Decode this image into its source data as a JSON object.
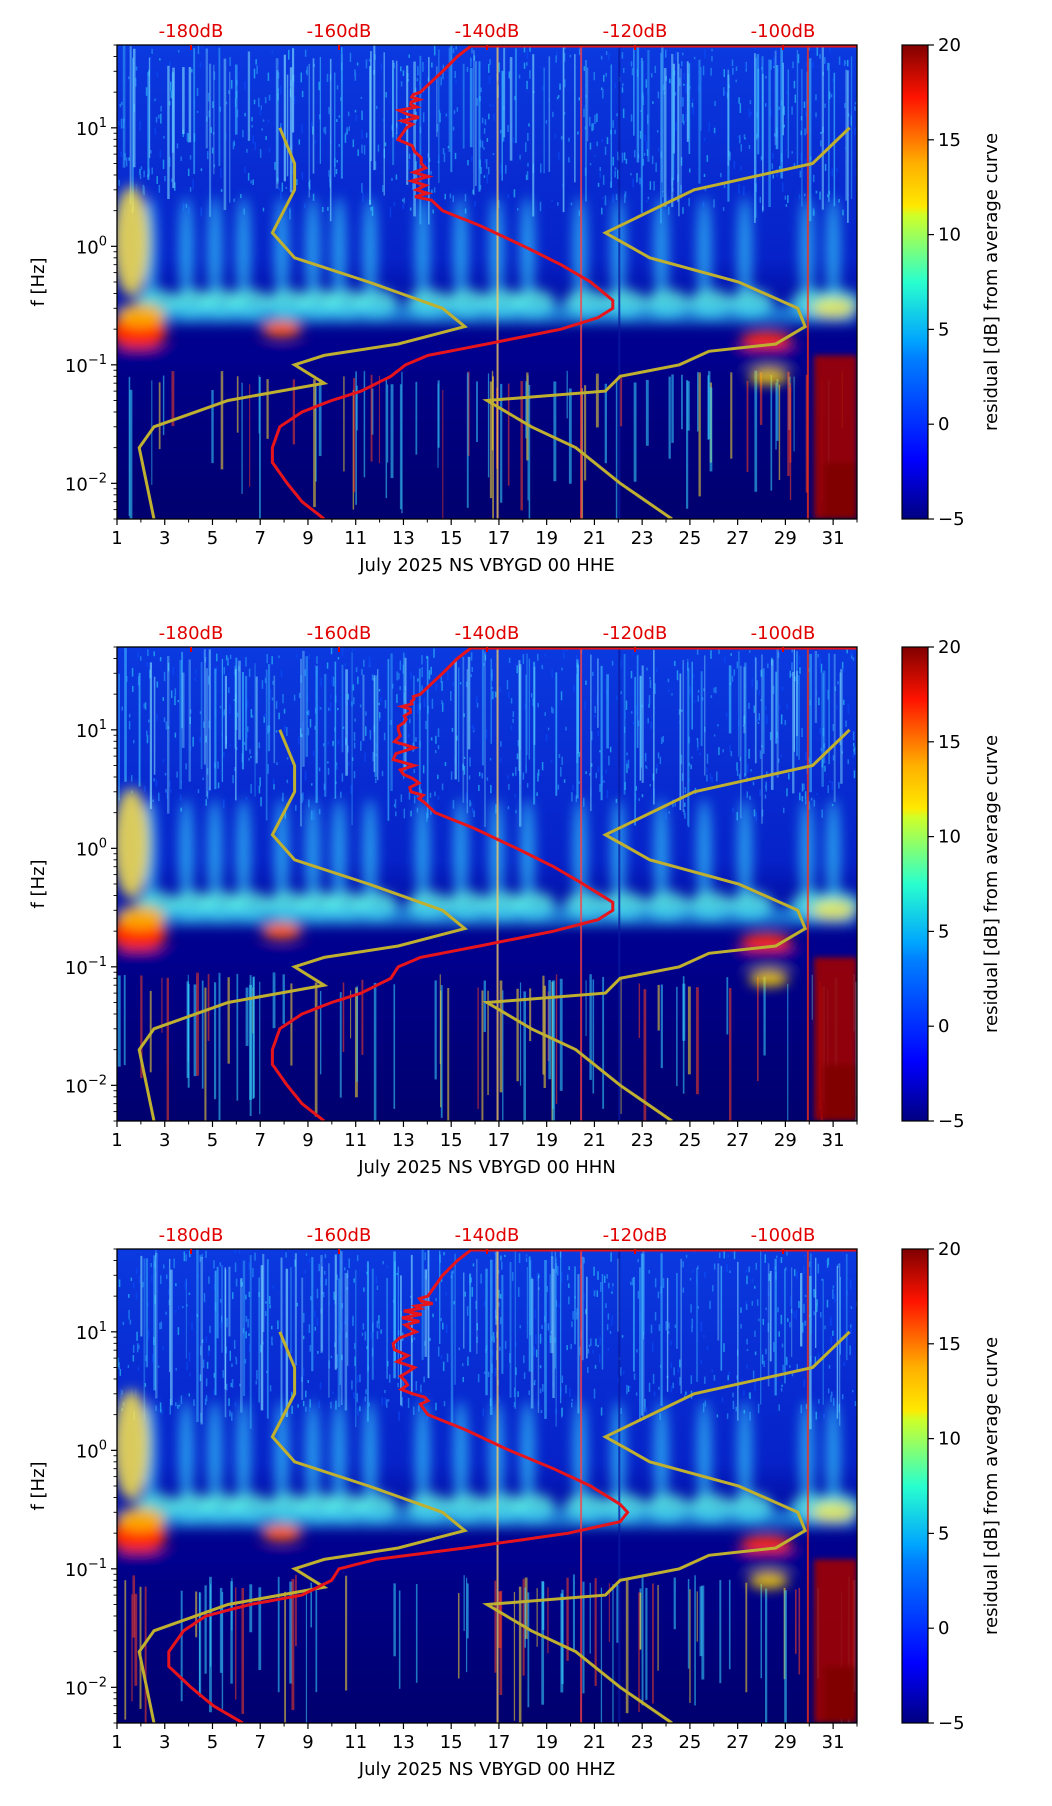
{
  "colors": {
    "accent_red": "#e00000",
    "curve_red": "#e8141c",
    "curve_olive": "#c0b030",
    "bg_deep": "#000091",
    "bg_blue": "#0a2bd6"
  },
  "chart_data": [
    {
      "type": "heatmap",
      "title": "",
      "xlabel": "July 2025 NS VBYGD 00 HHE",
      "ylabel": "f [Hz]",
      "x_ticks": [
        "1",
        "3",
        "5",
        "7",
        "9",
        "11",
        "13",
        "15",
        "17",
        "19",
        "21",
        "23",
        "25",
        "27",
        "29",
        "31"
      ],
      "y_ticks": [
        "10^-2",
        "10^-1",
        "10^0",
        "10^1"
      ],
      "top_ticks": [
        "-180dB",
        "-160dB",
        "-140dB",
        "-120dB",
        "-100dB"
      ],
      "colorbar_label": "residual [dB] from average curve",
      "colorbar_ticks": [
        "−5",
        "0",
        "5",
        "10",
        "15",
        "20"
      ],
      "clim": [
        -5,
        20
      ],
      "xlim": [
        1,
        32
      ],
      "ylim_hz": [
        0.005,
        50
      ],
      "top_axis_db": [
        -190,
        -90
      ],
      "vertical_stripes_day": [
        2.4,
        3.9,
        5.1,
        6.3,
        7.9,
        9.2,
        10.3,
        11.6,
        13.8,
        15.4,
        16.9,
        18.2,
        20.4,
        22.0,
        23.8,
        25.6,
        27.3,
        29.9,
        31.0
      ],
      "red_curve": {
        "name": "average PSD",
        "points_hz_db": [
          [
            50,
            -142
          ],
          [
            40,
            -144
          ],
          [
            30,
            -146
          ],
          [
            20,
            -149
          ],
          [
            15,
            -150
          ],
          [
            10,
            -151
          ],
          [
            5,
            -150
          ],
          [
            3,
            -149
          ],
          [
            2,
            -146
          ],
          [
            1.5,
            -141
          ],
          [
            1,
            -135
          ],
          [
            0.7,
            -130
          ],
          [
            0.5,
            -126
          ],
          [
            0.35,
            -123
          ],
          [
            0.3,
            -123
          ],
          [
            0.25,
            -125
          ],
          [
            0.2,
            -130
          ],
          [
            0.15,
            -140
          ],
          [
            0.12,
            -148
          ],
          [
            0.1,
            -151
          ],
          [
            0.08,
            -153
          ],
          [
            0.06,
            -157
          ],
          [
            0.05,
            -161
          ],
          [
            0.04,
            -165
          ],
          [
            0.03,
            -168
          ],
          [
            0.02,
            -169
          ],
          [
            0.015,
            -169
          ],
          [
            0.01,
            -167
          ],
          [
            0.007,
            -165
          ],
          [
            0.005,
            -162
          ]
        ]
      },
      "olive_curves": [
        {
          "name": "Peterson NLNM",
          "points_hz_db": [
            [
              10,
              -168
            ],
            [
              5,
              -166
            ],
            [
              3,
              -166
            ],
            [
              1.3,
              -169
            ],
            [
              0.8,
              -166
            ],
            [
              0.5,
              -156
            ],
            [
              0.3,
              -146
            ],
            [
              0.21,
              -143
            ],
            [
              0.15,
              -152
            ],
            [
              0.12,
              -162
            ],
            [
              0.1,
              -166
            ],
            [
              0.07,
              -162
            ],
            [
              0.05,
              -175
            ],
            [
              0.03,
              -185
            ],
            [
              0.02,
              -187
            ],
            [
              0.01,
              -186
            ],
            [
              0.005,
              -185
            ]
          ]
        },
        {
          "name": "Peterson NHNM",
          "points_hz_db": [
            [
              10,
              -91
            ],
            [
              5,
              -96
            ],
            [
              3,
              -112
            ],
            [
              1.3,
              -124
            ],
            [
              0.8,
              -118
            ],
            [
              0.5,
              -106
            ],
            [
              0.3,
              -98
            ],
            [
              0.21,
              -97
            ],
            [
              0.15,
              -101
            ],
            [
              0.13,
              -110
            ],
            [
              0.1,
              -114
            ],
            [
              0.08,
              -122
            ],
            [
              0.06,
              -124
            ],
            [
              0.05,
              -140
            ],
            [
              0.03,
              -134
            ],
            [
              0.02,
              -128
            ],
            [
              0.01,
              -122
            ],
            [
              0.005,
              -115
            ]
          ]
        }
      ]
    },
    {
      "type": "heatmap",
      "title": "",
      "xlabel": "July 2025 NS VBYGD 00 HHN",
      "ylabel": "f [Hz]",
      "x_ticks": [
        "1",
        "3",
        "5",
        "7",
        "9",
        "11",
        "13",
        "15",
        "17",
        "19",
        "21",
        "23",
        "25",
        "27",
        "29",
        "31"
      ],
      "y_ticks": [
        "10^-2",
        "10^-1",
        "10^0",
        "10^1"
      ],
      "top_ticks": [
        "-180dB",
        "-160dB",
        "-140dB",
        "-120dB",
        "-100dB"
      ],
      "colorbar_label": "residual [dB] from average curve",
      "colorbar_ticks": [
        "−5",
        "0",
        "5",
        "10",
        "15",
        "20"
      ],
      "clim": [
        -5,
        20
      ],
      "xlim": [
        1,
        32
      ],
      "ylim_hz": [
        0.005,
        50
      ],
      "top_axis_db": [
        -190,
        -90
      ],
      "vertical_stripes_day": [
        2.4,
        3.9,
        5.1,
        6.3,
        7.9,
        9.2,
        10.3,
        11.6,
        13.8,
        15.4,
        16.9,
        18.2,
        20.4,
        22.0,
        23.8,
        25.6,
        27.3,
        29.9,
        31.0
      ],
      "red_curve": {
        "name": "average PSD",
        "points_hz_db": [
          [
            50,
            -142
          ],
          [
            40,
            -144
          ],
          [
            30,
            -146
          ],
          [
            20,
            -149
          ],
          [
            15,
            -150
          ],
          [
            10,
            -151
          ],
          [
            5,
            -151
          ],
          [
            3,
            -150
          ],
          [
            2,
            -147
          ],
          [
            1.5,
            -142
          ],
          [
            1,
            -136
          ],
          [
            0.7,
            -131
          ],
          [
            0.5,
            -127
          ],
          [
            0.35,
            -123
          ],
          [
            0.3,
            -123
          ],
          [
            0.25,
            -125
          ],
          [
            0.2,
            -131
          ],
          [
            0.15,
            -141
          ],
          [
            0.12,
            -149
          ],
          [
            0.1,
            -152
          ],
          [
            0.08,
            -153
          ],
          [
            0.06,
            -157
          ],
          [
            0.05,
            -161
          ],
          [
            0.04,
            -165
          ],
          [
            0.03,
            -168
          ],
          [
            0.02,
            -169
          ],
          [
            0.015,
            -169
          ],
          [
            0.01,
            -167
          ],
          [
            0.007,
            -165
          ],
          [
            0.005,
            -162
          ]
        ]
      },
      "olive_curves": [
        {
          "name": "Peterson NLNM",
          "points_hz_db": [
            [
              10,
              -168
            ],
            [
              5,
              -166
            ],
            [
              3,
              -166
            ],
            [
              1.3,
              -169
            ],
            [
              0.8,
              -166
            ],
            [
              0.5,
              -156
            ],
            [
              0.3,
              -146
            ],
            [
              0.21,
              -143
            ],
            [
              0.15,
              -152
            ],
            [
              0.12,
              -162
            ],
            [
              0.1,
              -166
            ],
            [
              0.07,
              -162
            ],
            [
              0.05,
              -175
            ],
            [
              0.03,
              -185
            ],
            [
              0.02,
              -187
            ],
            [
              0.01,
              -186
            ],
            [
              0.005,
              -185
            ]
          ]
        },
        {
          "name": "Peterson NHNM",
          "points_hz_db": [
            [
              10,
              -91
            ],
            [
              5,
              -96
            ],
            [
              3,
              -112
            ],
            [
              1.3,
              -124
            ],
            [
              0.8,
              -118
            ],
            [
              0.5,
              -106
            ],
            [
              0.3,
              -98
            ],
            [
              0.21,
              -97
            ],
            [
              0.15,
              -101
            ],
            [
              0.13,
              -110
            ],
            [
              0.1,
              -114
            ],
            [
              0.08,
              -122
            ],
            [
              0.06,
              -124
            ],
            [
              0.05,
              -140
            ],
            [
              0.03,
              -134
            ],
            [
              0.02,
              -128
            ],
            [
              0.01,
              -122
            ],
            [
              0.005,
              -115
            ]
          ]
        }
      ]
    },
    {
      "type": "heatmap",
      "title": "",
      "xlabel": "July 2025 NS VBYGD 00 HHZ",
      "ylabel": "f [Hz]",
      "x_ticks": [
        "1",
        "3",
        "5",
        "7",
        "9",
        "11",
        "13",
        "15",
        "17",
        "19",
        "21",
        "23",
        "25",
        "27",
        "29",
        "31"
      ],
      "y_ticks": [
        "10^-2",
        "10^-1",
        "10^0",
        "10^1"
      ],
      "top_ticks": [
        "-180dB",
        "-160dB",
        "-140dB",
        "-120dB",
        "-100dB"
      ],
      "colorbar_label": "residual [dB] from average curve",
      "colorbar_ticks": [
        "−5",
        "0",
        "5",
        "10",
        "15",
        "20"
      ],
      "clim": [
        -5,
        20
      ],
      "xlim": [
        1,
        32
      ],
      "ylim_hz": [
        0.005,
        50
      ],
      "top_axis_db": [
        -190,
        -90
      ],
      "vertical_stripes_day": [
        2.4,
        3.9,
        5.1,
        6.3,
        7.9,
        9.2,
        10.3,
        11.6,
        13.8,
        15.4,
        16.9,
        18.2,
        20.4,
        22.0,
        23.8,
        25.6,
        27.3,
        29.9,
        31.0
      ],
      "red_curve": {
        "name": "average PSD",
        "points_hz_db": [
          [
            50,
            -142
          ],
          [
            40,
            -144
          ],
          [
            30,
            -146
          ],
          [
            20,
            -148
          ],
          [
            15,
            -150
          ],
          [
            10,
            -151
          ],
          [
            5,
            -151
          ],
          [
            3,
            -150
          ],
          [
            2,
            -148
          ],
          [
            1.5,
            -143
          ],
          [
            1,
            -137
          ],
          [
            0.7,
            -131
          ],
          [
            0.5,
            -126
          ],
          [
            0.35,
            -122
          ],
          [
            0.3,
            -121
          ],
          [
            0.25,
            -122
          ],
          [
            0.2,
            -129
          ],
          [
            0.15,
            -143
          ],
          [
            0.12,
            -155
          ],
          [
            0.1,
            -160
          ],
          [
            0.08,
            -161
          ],
          [
            0.06,
            -165
          ],
          [
            0.05,
            -172
          ],
          [
            0.04,
            -178
          ],
          [
            0.03,
            -181
          ],
          [
            0.02,
            -183
          ],
          [
            0.015,
            -183
          ],
          [
            0.01,
            -180
          ],
          [
            0.007,
            -177
          ],
          [
            0.005,
            -173
          ]
        ]
      },
      "olive_curves": [
        {
          "name": "Peterson NLNM",
          "points_hz_db": [
            [
              10,
              -168
            ],
            [
              5,
              -166
            ],
            [
              3,
              -166
            ],
            [
              1.3,
              -169
            ],
            [
              0.8,
              -166
            ],
            [
              0.5,
              -156
            ],
            [
              0.3,
              -146
            ],
            [
              0.21,
              -143
            ],
            [
              0.15,
              -152
            ],
            [
              0.12,
              -162
            ],
            [
              0.1,
              -166
            ],
            [
              0.07,
              -162
            ],
            [
              0.05,
              -175
            ],
            [
              0.03,
              -185
            ],
            [
              0.02,
              -187
            ],
            [
              0.01,
              -186
            ],
            [
              0.005,
              -185
            ]
          ]
        },
        {
          "name": "Peterson NHNM",
          "points_hz_db": [
            [
              10,
              -91
            ],
            [
              5,
              -96
            ],
            [
              3,
              -112
            ],
            [
              1.3,
              -124
            ],
            [
              0.8,
              -118
            ],
            [
              0.5,
              -106
            ],
            [
              0.3,
              -98
            ],
            [
              0.21,
              -97
            ],
            [
              0.15,
              -101
            ],
            [
              0.13,
              -110
            ],
            [
              0.1,
              -114
            ],
            [
              0.08,
              -122
            ],
            [
              0.06,
              -124
            ],
            [
              0.05,
              -140
            ],
            [
              0.03,
              -134
            ],
            [
              0.02,
              -128
            ],
            [
              0.01,
              -122
            ],
            [
              0.005,
              -115
            ]
          ]
        }
      ]
    }
  ]
}
